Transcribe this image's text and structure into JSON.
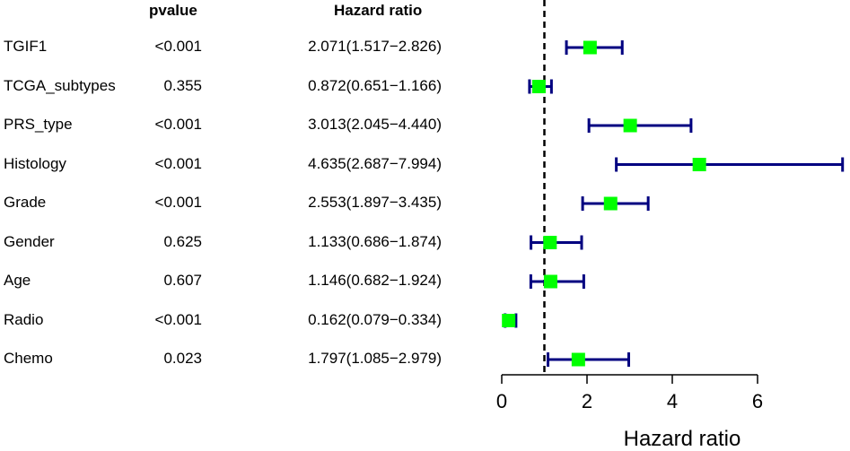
{
  "headers": {
    "pvalue": "pvalue",
    "hazard_ratio": "Hazard ratio"
  },
  "chart_data": {
    "type": "forest",
    "xlabel": "Hazard ratio",
    "xlim": [
      0,
      8.1
    ],
    "xticks": [
      0,
      2,
      4,
      6
    ],
    "reference_line": 1,
    "rows": [
      {
        "variable": "TGIF1",
        "pvalue": "<0.001",
        "hr_text": "2.071(1.517−2.826)",
        "hr": 2.071,
        "lower": 1.517,
        "upper": 2.826
      },
      {
        "variable": "TCGA_subtypes",
        "pvalue": "0.355",
        "hr_text": "0.872(0.651−1.166)",
        "hr": 0.872,
        "lower": 0.651,
        "upper": 1.166
      },
      {
        "variable": "PRS_type",
        "pvalue": "<0.001",
        "hr_text": "3.013(2.045−4.440)",
        "hr": 3.013,
        "lower": 2.045,
        "upper": 4.44
      },
      {
        "variable": "Histology",
        "pvalue": "<0.001",
        "hr_text": "4.635(2.687−7.994)",
        "hr": 4.635,
        "lower": 2.687,
        "upper": 7.994
      },
      {
        "variable": "Grade",
        "pvalue": "<0.001",
        "hr_text": "2.553(1.897−3.435)",
        "hr": 2.553,
        "lower": 1.897,
        "upper": 3.435
      },
      {
        "variable": "Gender",
        "pvalue": "0.625",
        "hr_text": "1.133(0.686−1.874)",
        "hr": 1.133,
        "lower": 0.686,
        "upper": 1.874
      },
      {
        "variable": "Age",
        "pvalue": "0.607",
        "hr_text": "1.146(0.682−1.924)",
        "hr": 1.146,
        "lower": 0.682,
        "upper": 1.924
      },
      {
        "variable": "Radio",
        "pvalue": "<0.001",
        "hr_text": "0.162(0.079−0.334)",
        "hr": 0.162,
        "lower": 0.079,
        "upper": 0.334
      },
      {
        "variable": "Chemo",
        "pvalue": "0.023",
        "hr_text": "1.797(1.085−2.979)",
        "hr": 1.797,
        "lower": 1.085,
        "upper": 2.979
      }
    ],
    "colors": {
      "ci_line": "#000080",
      "point": "#00ff00",
      "reference": "#000000"
    }
  }
}
